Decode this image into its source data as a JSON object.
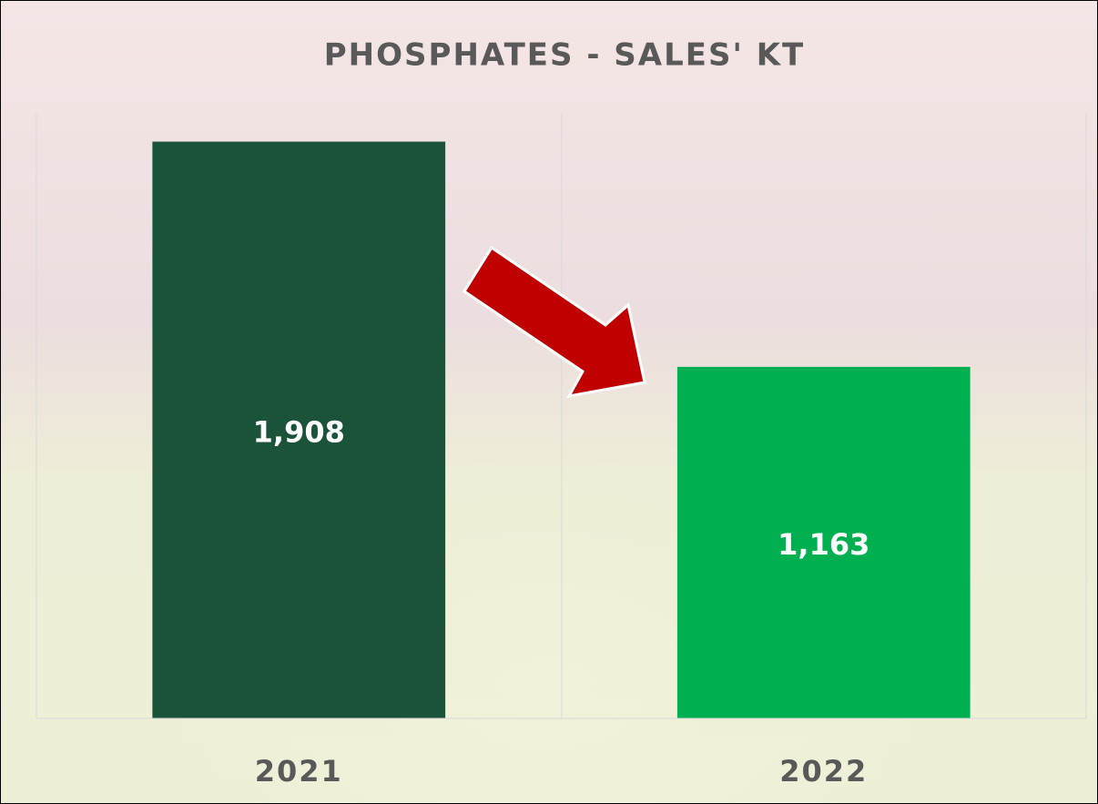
{
  "chart_data": {
    "type": "bar",
    "title": "PHOSPHATES - SALES' KT",
    "categories": [
      "2021",
      "2022"
    ],
    "values": [
      1908,
      1163
    ],
    "value_labels": [
      "1,908",
      "1,163"
    ],
    "colors": [
      "#1a523a",
      "#00b050"
    ],
    "ylim": [
      0,
      2000
    ]
  }
}
